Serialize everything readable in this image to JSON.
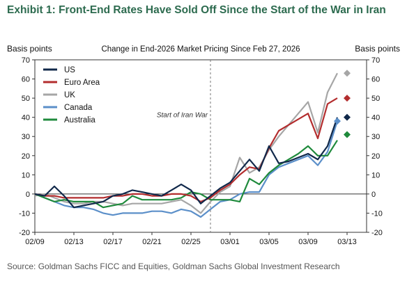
{
  "title": "Exhibit 1: Front-End Rates Have Sold Off Since the Start of the War in Iran",
  "source": "Source: Goldman Sachs FICC and Equities, Goldman Sachs Global Investment Research",
  "chart_data": {
    "type": "line",
    "title": "Change in End-2026 Market Pricing Since Feb 27, 2026",
    "ylabel_left": "Basis points",
    "ylabel_right": "Basis points",
    "ylim": [
      -20,
      70
    ],
    "yticks": [
      -20,
      -10,
      0,
      10,
      20,
      30,
      40,
      50,
      60,
      70
    ],
    "xlim": [
      0,
      34
    ],
    "xticks": [
      {
        "x": 0,
        "label": "02/09"
      },
      {
        "x": 4,
        "label": "02/13"
      },
      {
        "x": 8,
        "label": "02/17"
      },
      {
        "x": 12,
        "label": "02/21"
      },
      {
        "x": 16,
        "label": "02/25"
      },
      {
        "x": 20,
        "label": "03/01"
      },
      {
        "x": 24,
        "label": "03/05"
      },
      {
        "x": 28,
        "label": "03/09"
      },
      {
        "x": 32,
        "label": "03/13"
      }
    ],
    "annotation": {
      "x": 18,
      "label": "Start of Iran War"
    },
    "legend_position": "top-left",
    "series": [
      {
        "name": "US",
        "color": "#10284a",
        "x": [
          0,
          1,
          2,
          3,
          4,
          5,
          6,
          7,
          8,
          9,
          10,
          11,
          12,
          13,
          14,
          15,
          16,
          17,
          18,
          19,
          20,
          21,
          22,
          23,
          24,
          25,
          26,
          27,
          28,
          29,
          30,
          31
        ],
        "y": [
          0,
          -1,
          4,
          -1,
          -7,
          -6,
          -5,
          -4,
          -1,
          0,
          2,
          1,
          0,
          -1,
          2,
          5,
          2,
          -5,
          -1,
          3,
          6,
          12,
          18,
          12,
          25,
          16,
          17,
          19,
          21,
          18,
          25,
          40
        ],
        "marker_x": 32,
        "marker_y": 40
      },
      {
        "name": "Euro Area",
        "color": "#b32d2e",
        "x": [
          0,
          1,
          2,
          3,
          4,
          5,
          6,
          7,
          8,
          9,
          10,
          11,
          12,
          13,
          14,
          15,
          16,
          17,
          18,
          19,
          20,
          21,
          22,
          23,
          24,
          25,
          26,
          27,
          28,
          29,
          30,
          31
        ],
        "y": [
          0,
          -1,
          -1,
          -2,
          -2,
          -2,
          -2,
          -2,
          -1,
          -1,
          0,
          0,
          -1,
          -1,
          0,
          0,
          -1,
          -4,
          -2,
          2,
          5,
          10,
          14,
          13,
          24,
          33,
          36,
          39,
          42,
          29,
          47,
          50
        ],
        "marker_x": 32,
        "marker_y": 50
      },
      {
        "name": "UK",
        "color": "#a6a6a6",
        "x": [
          0,
          1,
          2,
          3,
          4,
          5,
          6,
          7,
          8,
          9,
          10,
          11,
          12,
          13,
          14,
          15,
          16,
          17,
          18,
          19,
          20,
          21,
          22,
          23,
          24,
          25,
          26,
          27,
          28,
          29,
          30,
          31
        ],
        "y": [
          -1,
          0,
          -2,
          -4,
          -5,
          -5,
          -4,
          -4,
          -5,
          -6,
          -5,
          -5,
          -5,
          -5,
          -4,
          -3,
          -6,
          -10,
          -4,
          1,
          4,
          19,
          11,
          14,
          23,
          30,
          36,
          42,
          48,
          32,
          53,
          63
        ],
        "marker_x": 32,
        "marker_y": 63
      },
      {
        "name": "Canada",
        "color": "#5b8fc9",
        "x": [
          0,
          1,
          2,
          3,
          4,
          5,
          6,
          7,
          8,
          9,
          10,
          11,
          12,
          13,
          14,
          15,
          16,
          17,
          18,
          19,
          20,
          21,
          22,
          23,
          24,
          25,
          26,
          27,
          28,
          29,
          30,
          31
        ],
        "y": [
          0,
          -2,
          -4,
          -6,
          -7,
          -7,
          -8,
          -10,
          -11,
          -10,
          -10,
          -10,
          -9,
          -9,
          -10,
          -8,
          -9,
          -12,
          -8,
          -4,
          -3,
          0,
          1,
          1,
          10,
          14,
          16,
          18,
          20,
          15,
          22,
          38
        ],
        "marker_x": 31,
        "marker_y": 38
      },
      {
        "name": "Australia",
        "color": "#1f8a3c",
        "x": [
          0,
          1,
          2,
          3,
          4,
          5,
          6,
          7,
          8,
          9,
          10,
          11,
          12,
          13,
          14,
          15,
          16,
          17,
          18,
          19,
          20,
          21,
          22,
          23,
          24,
          25,
          26,
          27,
          28,
          29,
          30,
          31
        ],
        "y": [
          0,
          -2,
          -4,
          -3,
          -4,
          -4,
          -4,
          -7,
          -6,
          -5,
          -1,
          -3,
          -3,
          -3,
          -3,
          -2,
          1,
          0,
          -3,
          -3,
          -3,
          -4,
          8,
          5,
          11,
          15,
          18,
          21,
          25,
          20,
          20,
          28
        ],
        "marker_x": 32,
        "marker_y": 31
      }
    ]
  }
}
